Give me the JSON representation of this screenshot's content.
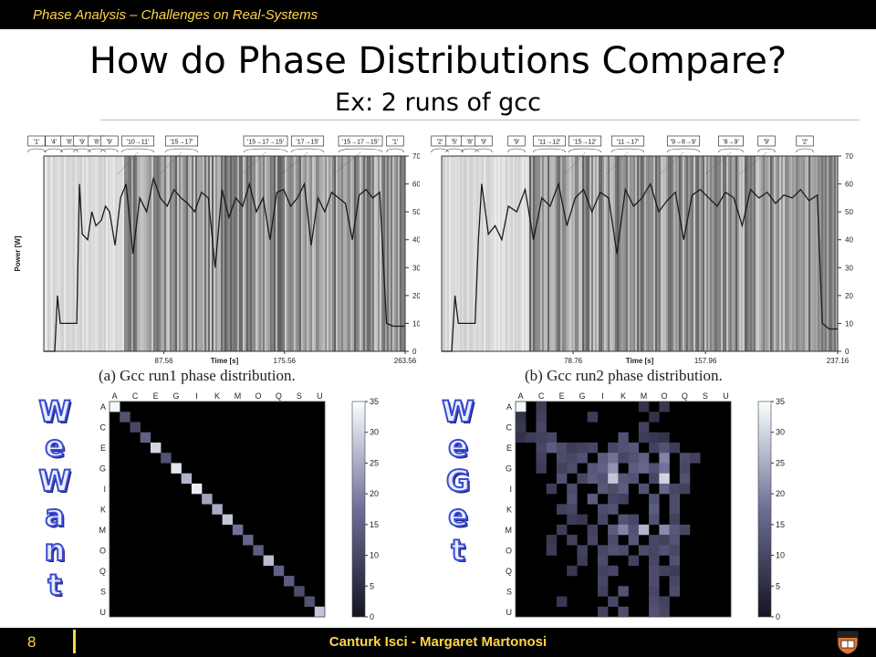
{
  "header": {
    "running_title": "Phase Analysis – Challenges on Real-Systems"
  },
  "slide": {
    "title": "How do Phase Distributions Compare?",
    "subtitle": "Ex: 2 runs of gcc"
  },
  "side_labels": {
    "left": "We Want",
    "right": "We Get"
  },
  "footer": {
    "page_number": "8",
    "authors": "Canturk Isci - Margaret Martonosi"
  },
  "chart_data": [
    {
      "type": "line",
      "caption": "(a) Gcc run1 phase distribution.",
      "ylabel": "Power [W]",
      "xlabel": "Time [s]",
      "ylim": [
        0,
        70
      ],
      "yticks": [
        "0",
        "10",
        "20",
        "30",
        "40",
        "50",
        "60",
        "70"
      ],
      "xticks": [
        87.56,
        175.56,
        263.56
      ],
      "xlim": [
        0,
        263.56
      ],
      "phase_labels": [
        "'1'",
        "'4'",
        "'8'",
        "'9'",
        "'8'",
        "'9'",
        "'10→11'",
        "'15→17'",
        "'15→17→15'",
        "'17→15'",
        "'15→17→15'",
        "'1'"
      ],
      "x": [
        0,
        8,
        10,
        12,
        14,
        24,
        26,
        28,
        32,
        35,
        38,
        42,
        45,
        48,
        52,
        56,
        60,
        65,
        70,
        75,
        80,
        85,
        90,
        95,
        100,
        105,
        110,
        115,
        120,
        125,
        130,
        135,
        140,
        145,
        150,
        155,
        160,
        165,
        170,
        175,
        180,
        185,
        190,
        195,
        200,
        205,
        210,
        215,
        220,
        225,
        230,
        235,
        240,
        245,
        250,
        255,
        263
      ],
      "y": [
        0,
        0,
        20,
        10,
        10,
        10,
        60,
        42,
        40,
        50,
        45,
        47,
        52,
        50,
        38,
        55,
        60,
        35,
        55,
        50,
        62,
        55,
        52,
        58,
        55,
        53,
        50,
        57,
        55,
        30,
        58,
        48,
        55,
        52,
        60,
        50,
        55,
        40,
        57,
        58,
        52,
        55,
        60,
        38,
        55,
        50,
        57,
        55,
        53,
        40,
        56,
        58,
        55,
        57,
        10,
        9,
        9
      ]
    },
    {
      "type": "line",
      "caption": "(b) Gcc run2 phase distribution.",
      "xlabel": "Time [s]",
      "ylim": [
        0,
        70
      ],
      "yticks": [
        "0",
        "10",
        "20",
        "30",
        "40",
        "50",
        "60",
        "70"
      ],
      "xticks": [
        78.76,
        157.96,
        237.16
      ],
      "xlim": [
        0,
        237.16
      ],
      "phase_labels": [
        "'2'",
        "'5'",
        "'8'",
        "'9'",
        "'9'",
        "'11→12'",
        "'15→12'",
        "'11→17'",
        "'9→8→9'",
        "'8→9'",
        "'9'",
        "'2'"
      ],
      "x": [
        0,
        6,
        8,
        10,
        20,
        22,
        24,
        28,
        32,
        36,
        40,
        45,
        50,
        55,
        60,
        65,
        70,
        75,
        80,
        85,
        90,
        95,
        100,
        105,
        110,
        115,
        120,
        125,
        130,
        135,
        140,
        145,
        150,
        155,
        160,
        165,
        170,
        175,
        180,
        185,
        190,
        195,
        200,
        205,
        210,
        215,
        220,
        225,
        228,
        232,
        237
      ],
      "y": [
        0,
        0,
        20,
        10,
        10,
        40,
        60,
        42,
        45,
        40,
        52,
        50,
        58,
        40,
        55,
        52,
        60,
        45,
        55,
        58,
        50,
        57,
        55,
        35,
        58,
        52,
        55,
        60,
        50,
        54,
        57,
        40,
        56,
        58,
        55,
        52,
        57,
        55,
        45,
        58,
        55,
        57,
        53,
        56,
        55,
        58,
        54,
        56,
        10,
        8,
        8
      ]
    },
    {
      "type": "heatmap",
      "title": "We Want",
      "row_labels": [
        "A",
        "C",
        "E",
        "G",
        "I",
        "K",
        "M",
        "O",
        "Q",
        "S",
        "U"
      ],
      "col_labels": [
        "A",
        "C",
        "E",
        "G",
        "I",
        "K",
        "M",
        "O",
        "Q",
        "S",
        "U"
      ],
      "n": 21,
      "colorbar_ticks": [
        0,
        5,
        10,
        15,
        20,
        25,
        30,
        35
      ],
      "vmin": 0,
      "vmax": 35,
      "cells": [
        [
          0,
          0,
          34
        ],
        [
          1,
          1,
          12
        ],
        [
          2,
          2,
          10
        ],
        [
          3,
          3,
          15
        ],
        [
          4,
          4,
          30
        ],
        [
          5,
          5,
          12
        ],
        [
          6,
          6,
          32
        ],
        [
          7,
          7,
          26
        ],
        [
          8,
          8,
          33
        ],
        [
          9,
          9,
          24
        ],
        [
          10,
          10,
          25
        ],
        [
          11,
          11,
          28
        ],
        [
          12,
          12,
          18
        ],
        [
          13,
          13,
          16
        ],
        [
          14,
          14,
          14
        ],
        [
          15,
          15,
          27
        ],
        [
          16,
          16,
          15
        ],
        [
          17,
          17,
          14
        ],
        [
          18,
          18,
          11
        ],
        [
          19,
          19,
          12
        ],
        [
          20,
          20,
          28
        ]
      ]
    },
    {
      "type": "heatmap",
      "title": "We Get",
      "row_labels": [
        "A",
        "C",
        "E",
        "G",
        "I",
        "K",
        "M",
        "O",
        "Q",
        "S",
        "U"
      ],
      "col_labels": [
        "A",
        "C",
        "E",
        "G",
        "I",
        "K",
        "M",
        "O",
        "Q",
        "S",
        "U"
      ],
      "n": 21,
      "colorbar_ticks": [
        0,
        5,
        10,
        15,
        20,
        25,
        30,
        35
      ],
      "vmin": 0,
      "vmax": 35,
      "cells": [
        [
          0,
          0,
          34
        ],
        [
          0,
          2,
          8
        ],
        [
          0,
          12,
          6
        ],
        [
          0,
          14,
          7
        ],
        [
          1,
          0,
          6
        ],
        [
          1,
          2,
          9
        ],
        [
          1,
          7,
          8
        ],
        [
          1,
          13,
          6
        ],
        [
          2,
          0,
          7
        ],
        [
          2,
          2,
          10
        ],
        [
          2,
          12,
          9
        ],
        [
          3,
          0,
          6
        ],
        [
          3,
          1,
          8
        ],
        [
          3,
          2,
          9
        ],
        [
          3,
          3,
          10
        ],
        [
          3,
          10,
          12
        ],
        [
          3,
          12,
          8
        ],
        [
          3,
          13,
          7
        ],
        [
          3,
          14,
          6
        ],
        [
          4,
          2,
          10
        ],
        [
          4,
          3,
          14
        ],
        [
          4,
          4,
          11
        ],
        [
          4,
          5,
          8
        ],
        [
          4,
          6,
          9
        ],
        [
          4,
          7,
          10
        ],
        [
          4,
          9,
          10
        ],
        [
          4,
          10,
          12
        ],
        [
          4,
          11,
          13
        ],
        [
          4,
          13,
          9
        ],
        [
          4,
          14,
          12
        ],
        [
          4,
          15,
          8
        ],
        [
          5,
          2,
          9
        ],
        [
          5,
          4,
          11
        ],
        [
          5,
          5,
          10
        ],
        [
          5,
          6,
          12
        ],
        [
          5,
          8,
          14
        ],
        [
          5,
          9,
          18
        ],
        [
          5,
          10,
          10
        ],
        [
          5,
          11,
          12
        ],
        [
          5,
          12,
          15
        ],
        [
          5,
          14,
          20
        ],
        [
          5,
          16,
          11
        ],
        [
          5,
          17,
          9
        ],
        [
          6,
          2,
          8
        ],
        [
          6,
          4,
          9
        ],
        [
          6,
          5,
          11
        ],
        [
          6,
          7,
          13
        ],
        [
          6,
          8,
          15
        ],
        [
          6,
          9,
          22
        ],
        [
          6,
          11,
          14
        ],
        [
          6,
          12,
          16
        ],
        [
          6,
          13,
          12
        ],
        [
          6,
          14,
          18
        ],
        [
          6,
          16,
          10
        ],
        [
          7,
          4,
          12
        ],
        [
          7,
          6,
          10
        ],
        [
          7,
          7,
          14
        ],
        [
          7,
          8,
          12
        ],
        [
          7,
          9,
          28
        ],
        [
          7,
          10,
          13
        ],
        [
          7,
          11,
          12
        ],
        [
          7,
          13,
          10
        ],
        [
          7,
          14,
          30
        ],
        [
          7,
          16,
          12
        ],
        [
          8,
          3,
          8
        ],
        [
          8,
          5,
          11
        ],
        [
          8,
          8,
          13
        ],
        [
          8,
          9,
          11
        ],
        [
          8,
          10,
          14
        ],
        [
          8,
          12,
          12
        ],
        [
          8,
          14,
          16
        ],
        [
          8,
          15,
          10
        ],
        [
          8,
          16,
          9
        ],
        [
          9,
          5,
          12
        ],
        [
          9,
          7,
          14
        ],
        [
          9,
          9,
          10
        ],
        [
          9,
          10,
          9
        ],
        [
          9,
          13,
          12
        ],
        [
          9,
          15,
          11
        ],
        [
          10,
          4,
          9
        ],
        [
          10,
          5,
          10
        ],
        [
          10,
          8,
          11
        ],
        [
          10,
          9,
          12
        ],
        [
          10,
          13,
          14
        ],
        [
          10,
          15,
          11
        ],
        [
          11,
          5,
          8
        ],
        [
          11,
          6,
          7
        ],
        [
          11,
          8,
          10
        ],
        [
          11,
          10,
          12
        ],
        [
          11,
          11,
          10
        ],
        [
          11,
          13,
          12
        ],
        [
          11,
          15,
          9
        ],
        [
          12,
          4,
          8
        ],
        [
          12,
          7,
          9
        ],
        [
          12,
          9,
          14
        ],
        [
          12,
          10,
          20
        ],
        [
          12,
          11,
          12
        ],
        [
          12,
          12,
          26
        ],
        [
          12,
          14,
          21
        ],
        [
          12,
          15,
          13
        ],
        [
          12,
          16,
          10
        ],
        [
          13,
          3,
          7
        ],
        [
          13,
          5,
          9
        ],
        [
          13,
          7,
          10
        ],
        [
          13,
          9,
          11
        ],
        [
          13,
          11,
          13
        ],
        [
          13,
          13,
          10
        ],
        [
          13,
          14,
          9
        ],
        [
          13,
          15,
          12
        ],
        [
          14,
          3,
          8
        ],
        [
          14,
          6,
          9
        ],
        [
          14,
          8,
          10
        ],
        [
          14,
          9,
          12
        ],
        [
          14,
          10,
          11
        ],
        [
          14,
          12,
          11
        ],
        [
          14,
          13,
          10
        ],
        [
          14,
          14,
          12
        ],
        [
          14,
          15,
          10
        ],
        [
          15,
          6,
          8
        ],
        [
          15,
          8,
          11
        ],
        [
          15,
          11,
          9
        ],
        [
          15,
          13,
          10
        ],
        [
          15,
          15,
          12
        ],
        [
          16,
          5,
          7
        ],
        [
          16,
          8,
          9
        ],
        [
          16,
          9,
          10
        ],
        [
          16,
          13,
          11
        ],
        [
          16,
          14,
          9
        ],
        [
          16,
          15,
          8
        ],
        [
          17,
          8,
          10
        ],
        [
          17,
          13,
          11
        ],
        [
          17,
          15,
          10
        ],
        [
          18,
          8,
          9
        ],
        [
          18,
          10,
          12
        ],
        [
          18,
          13,
          10
        ],
        [
          18,
          15,
          11
        ],
        [
          19,
          4,
          7
        ],
        [
          19,
          9,
          10
        ],
        [
          19,
          13,
          11
        ],
        [
          19,
          14,
          9
        ],
        [
          20,
          8,
          9
        ],
        [
          20,
          10,
          11
        ],
        [
          20,
          13,
          12
        ],
        [
          20,
          14,
          10
        ]
      ]
    }
  ]
}
